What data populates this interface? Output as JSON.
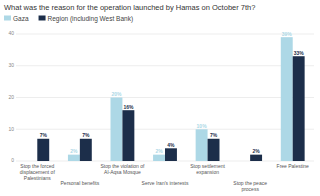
{
  "chart_data": {
    "type": "bar",
    "title": "What was the reason for the operation launched by Hamas on October 7th?",
    "categories": [
      "Stop the forced\ndisplacement of\nPalestinians",
      "Personal benefits",
      "Stop the violation of\nAl-Aqsa Mosque",
      "Serve Iran's interests",
      "Stop settlement\nexpansion",
      "Stop the peace\nprocess",
      "Free Palestine"
    ],
    "series": [
      {
        "name": "Gaza",
        "color": "#add8e6",
        "values": [
          0,
          2,
          20,
          2,
          10,
          0,
          39
        ],
        "value_labels": [
          null,
          "2%",
          "20%",
          "2%",
          "10%",
          null,
          "39%"
        ]
      },
      {
        "name": "Region (including West Bank)",
        "color": "#1c2e4a",
        "values": [
          7,
          7,
          16,
          4,
          7,
          2,
          33
        ],
        "value_labels": [
          "7%",
          "7%",
          "16%",
          "4%",
          "7%",
          "2%",
          "33%"
        ]
      }
    ],
    "ylim": [
      0,
      40
    ],
    "yticks": [
      0,
      10,
      20,
      30,
      40
    ],
    "grid": true,
    "legend": "top",
    "data_labels": true
  }
}
